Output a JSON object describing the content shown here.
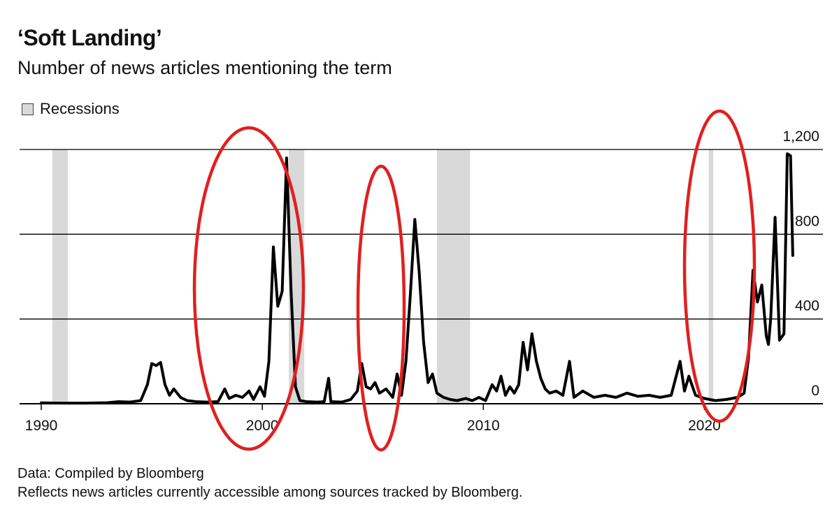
{
  "title": "‘Soft Landing’",
  "subtitle": "Number of news articles mentioning the term",
  "legend": {
    "label": "Recessions"
  },
  "footer": {
    "source": "Data: Compiled by Bloomberg",
    "note": "Reflects news articles currently accessible among sources tracked by Bloomberg."
  },
  "colors": {
    "line": "#000000",
    "recession": "#d9d9d9",
    "grid": "#000000",
    "annotation": "#e0201f"
  },
  "chart_data": {
    "type": "line",
    "title": "‘Soft Landing’",
    "subtitle": "Number of news articles mentioning the term",
    "xlim": [
      1990,
      2025.3
    ],
    "ylim": [
      0,
      1200
    ],
    "x_ticks": [
      1990,
      2000,
      2010,
      2020
    ],
    "y_ticks": [
      0,
      400,
      800,
      1200
    ],
    "y_tick_labels": [
      "0",
      "400",
      "800",
      "1,200"
    ],
    "grid": "horizontal",
    "y_axis_side": "right",
    "legend_placement": "top-left",
    "recessions": [
      [
        1990.5,
        1991.2
      ],
      [
        2001.2,
        2001.9
      ],
      [
        2007.9,
        2009.4
      ],
      [
        2020.2,
        2020.4
      ]
    ],
    "annotations": [
      "circle around 2000 spike",
      "circle around 2007 spike",
      "circle around 2022-2023 spike"
    ],
    "series": [
      {
        "values": [
          [
            1990.0,
            4
          ],
          [
            1991.0,
            3
          ],
          [
            1992.0,
            3
          ],
          [
            1993.0,
            5
          ],
          [
            1993.5,
            10
          ],
          [
            1994.0,
            8
          ],
          [
            1994.5,
            15
          ],
          [
            1994.8,
            90
          ],
          [
            1995.0,
            190
          ],
          [
            1995.2,
            180
          ],
          [
            1995.4,
            195
          ],
          [
            1995.6,
            90
          ],
          [
            1995.8,
            40
          ],
          [
            1996.0,
            70
          ],
          [
            1996.3,
            30
          ],
          [
            1996.6,
            15
          ],
          [
            1997.0,
            10
          ],
          [
            1997.5,
            8
          ],
          [
            1998.0,
            10
          ],
          [
            1998.3,
            70
          ],
          [
            1998.5,
            25
          ],
          [
            1998.8,
            40
          ],
          [
            1999.1,
            30
          ],
          [
            1999.4,
            60
          ],
          [
            1999.6,
            20
          ],
          [
            1999.9,
            80
          ],
          [
            2000.1,
            35
          ],
          [
            2000.3,
            200
          ],
          [
            2000.5,
            740
          ],
          [
            2000.7,
            460
          ],
          [
            2000.9,
            530
          ],
          [
            2001.1,
            1160
          ],
          [
            2001.3,
            540
          ],
          [
            2001.5,
            80
          ],
          [
            2001.7,
            15
          ],
          [
            2002.0,
            10
          ],
          [
            2002.5,
            8
          ],
          [
            2002.8,
            10
          ],
          [
            2003.0,
            120
          ],
          [
            2003.1,
            10
          ],
          [
            2003.6,
            8
          ],
          [
            2004.0,
            20
          ],
          [
            2004.3,
            60
          ],
          [
            2004.5,
            190
          ],
          [
            2004.7,
            80
          ],
          [
            2004.9,
            70
          ],
          [
            2005.1,
            100
          ],
          [
            2005.3,
            50
          ],
          [
            2005.6,
            70
          ],
          [
            2005.9,
            30
          ],
          [
            2006.1,
            140
          ],
          [
            2006.3,
            40
          ],
          [
            2006.5,
            200
          ],
          [
            2006.7,
            520
          ],
          [
            2006.9,
            870
          ],
          [
            2007.1,
            620
          ],
          [
            2007.3,
            290
          ],
          [
            2007.5,
            100
          ],
          [
            2007.7,
            140
          ],
          [
            2007.9,
            50
          ],
          [
            2008.2,
            30
          ],
          [
            2008.5,
            20
          ],
          [
            2008.8,
            15
          ],
          [
            2009.2,
            25
          ],
          [
            2009.5,
            15
          ],
          [
            2009.8,
            30
          ],
          [
            2010.1,
            15
          ],
          [
            2010.4,
            90
          ],
          [
            2010.6,
            60
          ],
          [
            2010.8,
            130
          ],
          [
            2011.0,
            40
          ],
          [
            2011.2,
            80
          ],
          [
            2011.4,
            50
          ],
          [
            2011.6,
            90
          ],
          [
            2011.8,
            290
          ],
          [
            2012.0,
            160
          ],
          [
            2012.2,
            330
          ],
          [
            2012.4,
            200
          ],
          [
            2012.6,
            120
          ],
          [
            2012.8,
            70
          ],
          [
            2013.0,
            50
          ],
          [
            2013.3,
            60
          ],
          [
            2013.6,
            40
          ],
          [
            2013.9,
            200
          ],
          [
            2014.1,
            30
          ],
          [
            2014.5,
            60
          ],
          [
            2015.0,
            30
          ],
          [
            2015.5,
            40
          ],
          [
            2016.0,
            30
          ],
          [
            2016.5,
            50
          ],
          [
            2017.0,
            35
          ],
          [
            2017.5,
            40
          ],
          [
            2018.0,
            30
          ],
          [
            2018.5,
            40
          ],
          [
            2018.9,
            200
          ],
          [
            2019.1,
            60
          ],
          [
            2019.3,
            130
          ],
          [
            2019.6,
            40
          ],
          [
            2020.0,
            25
          ],
          [
            2020.5,
            15
          ],
          [
            2021.0,
            20
          ],
          [
            2021.5,
            30
          ],
          [
            2021.8,
            50
          ],
          [
            2022.0,
            220
          ],
          [
            2022.2,
            630
          ],
          [
            2022.4,
            480
          ],
          [
            2022.6,
            560
          ],
          [
            2022.8,
            320
          ],
          [
            2022.9,
            280
          ],
          [
            2023.0,
            400
          ],
          [
            2023.2,
            880
          ],
          [
            2023.4,
            300
          ],
          [
            2023.6,
            330
          ],
          [
            2023.75,
            1180
          ],
          [
            2023.9,
            1170
          ],
          [
            2024.0,
            700
          ]
        ]
      }
    ]
  }
}
